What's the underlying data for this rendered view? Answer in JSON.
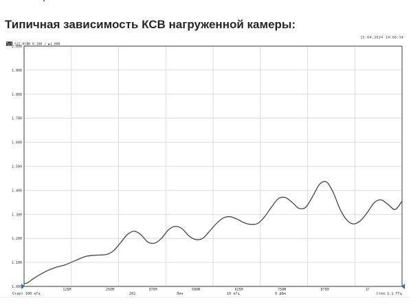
{
  "page": {
    "heading": "Типичная зависимость КСВ нагруженной камеры:"
  },
  "instrument": {
    "timestamp": "15.04.2024 14:06:34",
    "trace_badge": "Тр1",
    "trace_label": "S22 КСВН 0.100 / ▶1.000"
  },
  "chart_data": {
    "type": "line",
    "x_unit": "MHz",
    "xlim": [
      0.1,
      1100
    ],
    "ylim": [
      1.0,
      2.0
    ],
    "yticks": [
      2.0,
      1.9,
      1.8,
      1.7,
      1.6,
      1.5,
      1.4,
      1.3,
      1.2,
      1.1,
      1.0
    ],
    "ytick_labels": [
      "2.000",
      "1.900",
      "1.800",
      "1.700",
      "1.600",
      "1.500",
      "1.400",
      "1.300",
      "1.200",
      "1.100",
      "1.000"
    ],
    "xgrid": [
      137.5,
      275,
      412.5,
      550,
      687.5,
      825,
      962.5
    ],
    "xtick_labels": [
      "125M",
      "250M",
      "375M",
      "500M",
      "625M",
      "750M",
      "875M",
      "1Г"
    ],
    "xtick_label_at": [
      125,
      250,
      375,
      500,
      625,
      750,
      875,
      1000
    ],
    "grid": true,
    "x": [
      0.1,
      10,
      30,
      60,
      90,
      120,
      150,
      180,
      210,
      240,
      260,
      280,
      300,
      320,
      340,
      360,
      380,
      400,
      420,
      440,
      460,
      480,
      500,
      520,
      540,
      560,
      580,
      600,
      620,
      640,
      660,
      680,
      700,
      720,
      740,
      760,
      780,
      800,
      820,
      840,
      860,
      880,
      900,
      920,
      940,
      960,
      980,
      1000,
      1020,
      1040,
      1060,
      1080,
      1100
    ],
    "y": [
      1.012,
      1.015,
      1.035,
      1.06,
      1.078,
      1.09,
      1.108,
      1.125,
      1.13,
      1.133,
      1.148,
      1.18,
      1.215,
      1.23,
      1.215,
      1.185,
      1.18,
      1.2,
      1.235,
      1.25,
      1.24,
      1.21,
      1.195,
      1.2,
      1.23,
      1.262,
      1.285,
      1.29,
      1.28,
      1.265,
      1.258,
      1.262,
      1.29,
      1.33,
      1.365,
      1.37,
      1.35,
      1.325,
      1.33,
      1.375,
      1.425,
      1.435,
      1.39,
      1.32,
      1.275,
      1.26,
      1.275,
      1.31,
      1.35,
      1.36,
      1.34,
      1.32,
      1.355
    ],
    "footer": {
      "start_label": "Старт 100 кГц",
      "points_label": "201",
      "scale_label": "Лин",
      "ifbw_label": "10 кГц",
      "power_label": "0 дБм",
      "stop_label": "Стоп 1.1 ГГц"
    },
    "colors": {
      "trace": "#444444",
      "grid": "#d4d4d4",
      "frame": "#3a3a3a",
      "marker": "#2b6fb4"
    }
  }
}
